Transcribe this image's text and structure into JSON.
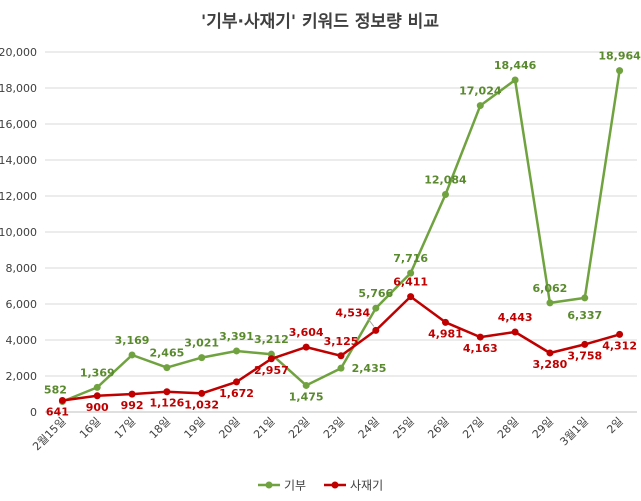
{
  "chart_data": {
    "type": "line",
    "title": "'기부·사재기' 키워드 정보량 비교",
    "categories": [
      "2월15일",
      "16일",
      "17일",
      "18일",
      "19일",
      "20일",
      "21일",
      "22일",
      "23일",
      "24일",
      "25일",
      "26일",
      "27일",
      "28일",
      "29일",
      "3월1일",
      "2일"
    ],
    "series": [
      {
        "name": "기부",
        "color": "#70a340",
        "values": [
          582,
          1369,
          3169,
          2465,
          3021,
          3391,
          3212,
          1475,
          2435,
          5766,
          7716,
          12084,
          17024,
          18446,
          6062,
          6337,
          18964
        ],
        "labels": [
          "582",
          "1,369",
          "3,169",
          "2,465",
          "3,021",
          "3,391",
          "3,212",
          "1,475",
          "2,435",
          "5,766",
          "7,716",
          "12,084",
          "17,024",
          "18,446",
          "6,062",
          "6,337",
          "18,964"
        ]
      },
      {
        "name": "사재기",
        "color": "#c00000",
        "values": [
          641,
          900,
          992,
          1126,
          1032,
          1672,
          2957,
          3604,
          3125,
          4534,
          6411,
          4981,
          4163,
          4443,
          3280,
          3758,
          4312
        ],
        "labels": [
          "641",
          "900",
          "992",
          "1,126",
          "1,032",
          "1,672",
          "2,957",
          "3,604",
          "3,125",
          "4,534",
          "6,411",
          "4,981",
          "4,163",
          "4,443",
          "3,280",
          "3,758",
          "4,312"
        ]
      }
    ],
    "ylim": [
      0,
      20000
    ],
    "yticks": [
      0,
      2000,
      4000,
      6000,
      8000,
      10000,
      12000,
      14000,
      16000,
      18000,
      20000
    ],
    "ytick_labels": [
      "0",
      "2,000",
      "4,000",
      "6,000",
      "8,000",
      "10,000",
      "12,000",
      "14,000",
      "16,000",
      "18,000",
      "20,000"
    ],
    "grid": true,
    "legend_position": "bottom"
  }
}
